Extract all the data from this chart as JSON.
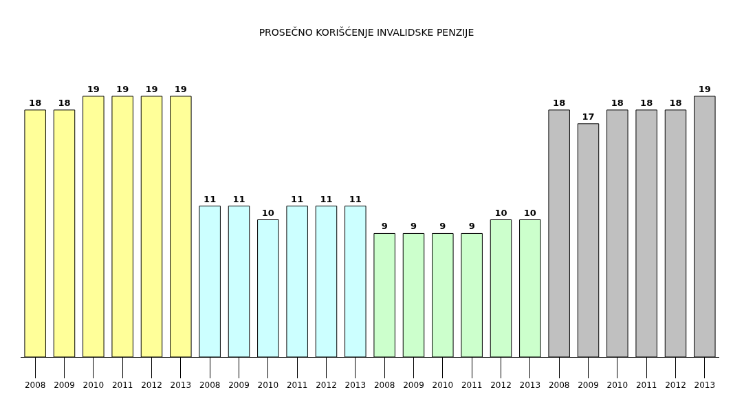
{
  "chart_data": {
    "type": "bar",
    "title": "PROSEČNO KORIŠĆENJE INVALIDSKE PENZIJE",
    "categories": [
      "2008",
      "2009",
      "2010",
      "2011",
      "2012",
      "2013",
      "2008",
      "2009",
      "2010",
      "2011",
      "2012",
      "2013",
      "2008",
      "2009",
      "2010",
      "2011",
      "2012",
      "2013",
      "2008",
      "2009",
      "2010",
      "2011",
      "2012",
      "2013"
    ],
    "values": [
      18,
      18,
      19,
      19,
      19,
      19,
      11,
      11,
      10,
      11,
      11,
      11,
      9,
      9,
      9,
      9,
      10,
      10,
      18,
      17,
      18,
      18,
      18,
      19
    ],
    "colors": [
      "#ffff99",
      "#ffff99",
      "#ffff99",
      "#ffff99",
      "#ffff99",
      "#ffff99",
      "#ccffff",
      "#ccffff",
      "#ccffff",
      "#ccffff",
      "#ccffff",
      "#ccffff",
      "#ccffcc",
      "#ccffcc",
      "#ccffcc",
      "#ccffcc",
      "#ccffcc",
      "#ccffcc",
      "#c0c0c0",
      "#c0c0c0",
      "#c0c0c0",
      "#c0c0c0",
      "#c0c0c0",
      "#c0c0c0"
    ],
    "data_labels": true
  }
}
